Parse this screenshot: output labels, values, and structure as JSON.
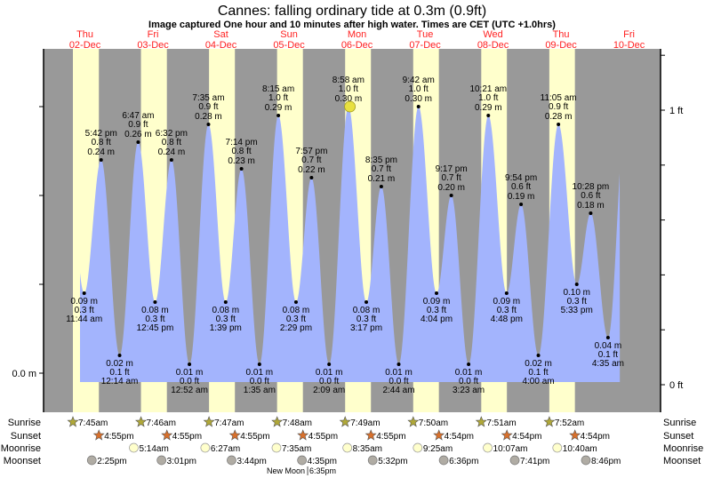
{
  "title": "Cannes: falling  ordinary tide at 0.3m (0.9ft)",
  "subtitle": "Image captured One hour and 10 minutes after high water. Times are CET (UTC +1.0hrs)",
  "colors": {
    "night": "#999999",
    "day": "#ffffcc",
    "water": "#a3b4fd",
    "day_label": "#ff2020",
    "now_marker": "#e8e040",
    "sunrise_star": "#b0a838",
    "sunset_star": "#d8702c",
    "moonrise": "#ffffcc",
    "moonset": "#b0aca4"
  },
  "chart_data": {
    "type": "area",
    "title": "Cannes: falling  ordinary tide at 0.3m (0.9ft)",
    "days": [
      {
        "dow": "Thu",
        "date": "02-Dec",
        "sunrise": "7:45am",
        "sunset": "4:55pm"
      },
      {
        "dow": "Fri",
        "date": "03-Dec",
        "sunrise": "7:46am",
        "sunset": "4:55pm"
      },
      {
        "dow": "Sat",
        "date": "04-Dec",
        "sunrise": "7:47am",
        "sunset": "4:55pm"
      },
      {
        "dow": "Sun",
        "date": "05-Dec",
        "sunrise": "7:48am",
        "sunset": "4:55pm"
      },
      {
        "dow": "Mon",
        "date": "06-Dec",
        "sunrise": "7:49am",
        "sunset": "4:55pm"
      },
      {
        "dow": "Tue",
        "date": "07-Dec",
        "sunrise": "7:50am",
        "sunset": "4:54pm"
      },
      {
        "dow": "Wed",
        "date": "08-Dec",
        "sunrise": "7:51am",
        "sunset": "4:54pm"
      },
      {
        "dow": "Thu",
        "date": "09-Dec",
        "sunrise": "7:52am",
        "sunset": "4:54pm"
      },
      {
        "dow": "Fri",
        "date": "10-Dec"
      }
    ],
    "tides": [
      {
        "date": "02-Dec",
        "time": "11:44 am",
        "m": "0.09 m",
        "ft": "0.3 ft",
        "value": 0.09,
        "type": "low"
      },
      {
        "date": "02-Dec",
        "time": "5:42 pm",
        "m": "0.24 m",
        "ft": "0.8 ft",
        "value": 0.24,
        "type": "high"
      },
      {
        "date": "03-Dec",
        "time": "12:14 am",
        "m": "0.02 m",
        "ft": "0.1 ft",
        "value": 0.02,
        "type": "low"
      },
      {
        "date": "03-Dec",
        "time": "6:47 am",
        "m": "0.26 m",
        "ft": "0.9 ft",
        "value": 0.26,
        "type": "high"
      },
      {
        "date": "03-Dec",
        "time": "12:45 pm",
        "m": "0.08 m",
        "ft": "0.3 ft",
        "value": 0.08,
        "type": "low"
      },
      {
        "date": "03-Dec",
        "time": "6:32 pm",
        "m": "0.24 m",
        "ft": "0.8 ft",
        "value": 0.24,
        "type": "high"
      },
      {
        "date": "04-Dec",
        "time": "12:52 am",
        "m": "0.01 m",
        "ft": "0.0 ft",
        "value": 0.01,
        "type": "low"
      },
      {
        "date": "04-Dec",
        "time": "7:35 am",
        "m": "0.28 m",
        "ft": "0.9 ft",
        "value": 0.28,
        "type": "high"
      },
      {
        "date": "04-Dec",
        "time": "1:39 pm",
        "m": "0.08 m",
        "ft": "0.3 ft",
        "value": 0.08,
        "type": "low"
      },
      {
        "date": "04-Dec",
        "time": "7:14 pm",
        "m": "0.23 m",
        "ft": "0.8 ft",
        "value": 0.23,
        "type": "high"
      },
      {
        "date": "05-Dec",
        "time": "1:35 am",
        "m": "0.01 m",
        "ft": "0.0 ft",
        "value": 0.01,
        "type": "low"
      },
      {
        "date": "05-Dec",
        "time": "8:15 am",
        "m": "0.29 m",
        "ft": "1.0 ft",
        "value": 0.29,
        "type": "high"
      },
      {
        "date": "05-Dec",
        "time": "2:29 pm",
        "m": "0.08 m",
        "ft": "0.3 ft",
        "value": 0.08,
        "type": "low"
      },
      {
        "date": "05-Dec",
        "time": "7:57 pm",
        "m": "0.22 m",
        "ft": "0.7 ft",
        "value": 0.22,
        "type": "high"
      },
      {
        "date": "06-Dec",
        "time": "2:09 am",
        "m": "0.01 m",
        "ft": "0.0 ft",
        "value": 0.01,
        "type": "low"
      },
      {
        "date": "06-Dec",
        "time": "8:58 am",
        "m": "0.30 m",
        "ft": "1.0 ft",
        "value": 0.3,
        "type": "high"
      },
      {
        "date": "06-Dec",
        "time": "3:17 pm",
        "m": "0.08 m",
        "ft": "0.3 ft",
        "value": 0.08,
        "type": "low"
      },
      {
        "date": "06-Dec",
        "time": "8:35 pm",
        "m": "0.21 m",
        "ft": "0.7 ft",
        "value": 0.21,
        "type": "high"
      },
      {
        "date": "07-Dec",
        "time": "2:44 am",
        "m": "0.01 m",
        "ft": "0.0 ft",
        "value": 0.01,
        "type": "low"
      },
      {
        "date": "07-Dec",
        "time": "9:42 am",
        "m": "0.30 m",
        "ft": "1.0 ft",
        "value": 0.3,
        "type": "high"
      },
      {
        "date": "07-Dec",
        "time": "4:04 pm",
        "m": "0.09 m",
        "ft": "0.3 ft",
        "value": 0.09,
        "type": "low"
      },
      {
        "date": "07-Dec",
        "time": "9:17 pm",
        "m": "0.20 m",
        "ft": "0.7 ft",
        "value": 0.2,
        "type": "high"
      },
      {
        "date": "08-Dec",
        "time": "3:23 am",
        "m": "0.01 m",
        "ft": "0.0 ft",
        "value": 0.01,
        "type": "low"
      },
      {
        "date": "08-Dec",
        "time": "10:21 am",
        "m": "0.29 m",
        "ft": "1.0 ft",
        "value": 0.29,
        "type": "high"
      },
      {
        "date": "08-Dec",
        "time": "4:48 pm",
        "m": "0.09 m",
        "ft": "0.3 ft",
        "value": 0.09,
        "type": "low"
      },
      {
        "date": "08-Dec",
        "time": "9:54 pm",
        "m": "0.19 m",
        "ft": "0.6 ft",
        "value": 0.19,
        "type": "high"
      },
      {
        "date": "09-Dec",
        "time": "4:00 am",
        "m": "0.02 m",
        "ft": "0.1 ft",
        "value": 0.02,
        "type": "low"
      },
      {
        "date": "09-Dec",
        "time": "11:05 am",
        "m": "0.28 m",
        "ft": "0.9 ft",
        "value": 0.28,
        "type": "high"
      },
      {
        "date": "09-Dec",
        "time": "5:33 pm",
        "m": "0.10 m",
        "ft": "0.3 ft",
        "value": 0.1,
        "type": "low"
      },
      {
        "date": "09-Dec",
        "time": "10:28 pm",
        "m": "0.18 m",
        "ft": "0.6 ft",
        "value": 0.18,
        "type": "high"
      },
      {
        "date": "10-Dec",
        "time": "4:35 am",
        "m": "0.04 m",
        "ft": "0.1 ft",
        "value": 0.04,
        "type": "low"
      }
    ],
    "current": {
      "date": "06-Dec",
      "time": "10:08 am",
      "value": 0.3
    },
    "y_left": {
      "unit": "m",
      "ticks": [
        {
          "value": 0.0,
          "label": "0.0 m"
        },
        {
          "value": 0.1,
          "label": ""
        },
        {
          "value": 0.2,
          "label": ""
        },
        {
          "value": 0.3,
          "label": ""
        }
      ]
    },
    "y_right": {
      "unit": "ft",
      "ticks": [
        {
          "value": 0,
          "label": "0 ft"
        },
        {
          "value": 0.2,
          "label": ""
        },
        {
          "value": 0.4,
          "label": ""
        },
        {
          "value": 0.6,
          "label": ""
        },
        {
          "value": 0.8,
          "label": ""
        },
        {
          "value": 1.0,
          "label": "1 ft"
        },
        {
          "value": 1.2,
          "label": ""
        }
      ]
    },
    "moonrise": [
      {
        "date": "03-Dec",
        "time": "5:14am"
      },
      {
        "date": "04-Dec",
        "time": "6:27am"
      },
      {
        "date": "05-Dec",
        "time": "7:35am"
      },
      {
        "date": "06-Dec",
        "time": "8:35am"
      },
      {
        "date": "07-Dec",
        "time": "9:25am"
      },
      {
        "date": "08-Dec",
        "time": "10:07am"
      },
      {
        "date": "09-Dec",
        "time": "10:40am"
      }
    ],
    "moonset": [
      {
        "date": "02-Dec",
        "time": "2:25pm"
      },
      {
        "date": "03-Dec",
        "time": "3:01pm"
      },
      {
        "date": "04-Dec",
        "time": "3:44pm"
      },
      {
        "date": "05-Dec",
        "time": "4:35pm"
      },
      {
        "date": "06-Dec",
        "time": "5:32pm"
      },
      {
        "date": "07-Dec",
        "time": "6:36pm"
      },
      {
        "date": "08-Dec",
        "time": "7:41pm"
      },
      {
        "date": "09-Dec",
        "time": "8:46pm"
      }
    ],
    "moon_phase": {
      "label": "New Moon",
      "date": "05-Dec",
      "time": "6:35pm"
    },
    "row_labels": {
      "sunrise": "Sunrise",
      "sunset": "Sunset",
      "moonrise": "Moonrise",
      "moonset": "Moonset"
    }
  }
}
